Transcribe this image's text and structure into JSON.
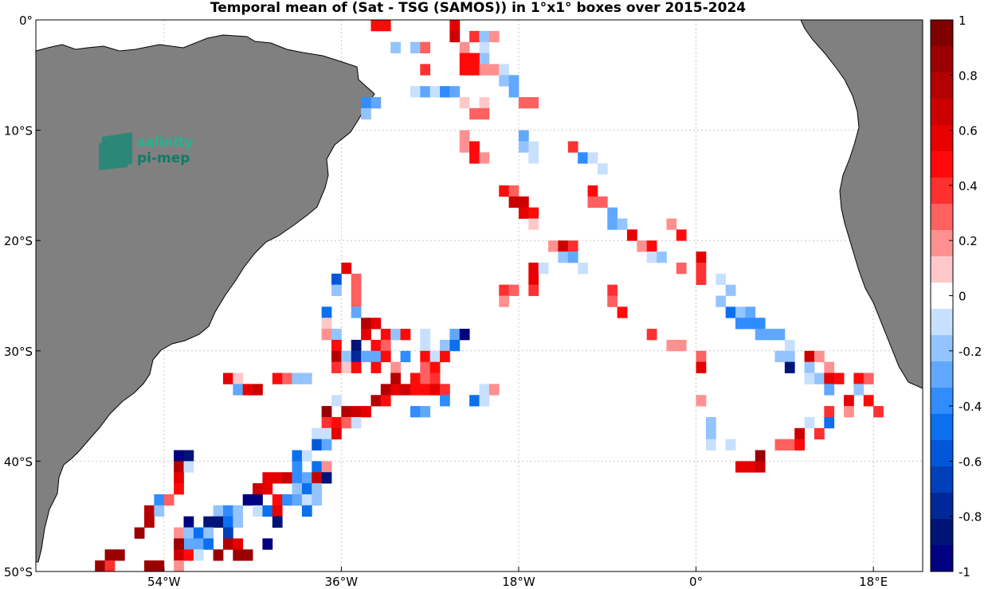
{
  "title": "Temporal mean of (Sat - TSG (SAMOS)) in 1°x1° boxes over 2015-2024",
  "logo": {
    "line1": "salinity",
    "line2": "pi-mep"
  },
  "chart_data": {
    "type": "heatmap",
    "map_extent": {
      "lon": [
        -67,
        23
      ],
      "lat": [
        -50,
        0
      ]
    },
    "x_ticks": [
      {
        "lon": -54,
        "label": "54°W"
      },
      {
        "lon": -36,
        "label": "36°W"
      },
      {
        "lon": -18,
        "label": "18°W"
      },
      {
        "lon": 0,
        "label": "0°"
      },
      {
        "lon": 18,
        "label": "18°E"
      }
    ],
    "y_ticks": [
      {
        "lat": 0,
        "label": "0°"
      },
      {
        "lat": -10,
        "label": "10°S"
      },
      {
        "lat": -20,
        "label": "20°S"
      },
      {
        "lat": -30,
        "label": "30°S"
      },
      {
        "lat": -40,
        "label": "40°S"
      },
      {
        "lat": -50,
        "label": "50°S"
      }
    ],
    "grid": true,
    "colorbar": {
      "range": [
        -1,
        1
      ],
      "ticks": [
        {
          "value": 1,
          "label": "1"
        },
        {
          "value": 0.8,
          "label": "0.8"
        },
        {
          "value": 0.6,
          "label": "0.6"
        },
        {
          "value": 0.4,
          "label": "0.4"
        },
        {
          "value": 0.2,
          "label": "0.2"
        },
        {
          "value": 0,
          "label": "0"
        },
        {
          "value": -0.2,
          "label": "-0.2"
        },
        {
          "value": -0.4,
          "label": "-0.4"
        },
        {
          "value": -0.6,
          "label": "-0.6"
        },
        {
          "value": -0.8,
          "label": "-0.8"
        },
        {
          "value": -1,
          "label": "-1"
        }
      ],
      "colors_top_to_bottom": [
        "#800000",
        "#9a0000",
        "#b40000",
        "#cc0000",
        "#e60000",
        "#ff0a0a",
        "#ff3030",
        "#ff6060",
        "#ff9090",
        "#ffc8c8",
        "#ffffff",
        "#c8e0ff",
        "#94c4ff",
        "#60a8ff",
        "#308cff",
        "#0a70f0",
        "#0058d8",
        "#0040b8",
        "#002898",
        "#001478",
        "#000080"
      ]
    },
    "cells": [
      [
        -33,
        0,
        0.5
      ],
      [
        -32,
        0,
        0.5
      ],
      [
        -25,
        0,
        0.6
      ],
      [
        -25,
        -1,
        0.7
      ],
      [
        -23,
        -1,
        0.4
      ],
      [
        -22,
        -1,
        -0.2
      ],
      [
        -21,
        -1,
        0.2
      ],
      [
        -31,
        -2,
        -0.2
      ],
      [
        -29,
        -2,
        -0.2
      ],
      [
        -28,
        -2,
        0.3
      ],
      [
        -24,
        -2,
        0.2
      ],
      [
        -22,
        -2,
        -0.1
      ],
      [
        -22,
        -3,
        -0.2
      ],
      [
        -24,
        -3,
        0.5
      ],
      [
        -23,
        -3,
        0.5
      ],
      [
        -28,
        -4,
        0.4
      ],
      [
        -24,
        -4,
        0.5
      ],
      [
        -23,
        -4,
        0.5
      ],
      [
        -22,
        -4,
        0.2
      ],
      [
        -21,
        -4,
        0.2
      ],
      [
        -20,
        -4,
        -0.1
      ],
      [
        -20,
        -5,
        -0.2
      ],
      [
        -19,
        -5,
        -0.3
      ],
      [
        -29,
        -6,
        -0.1
      ],
      [
        -28,
        -6,
        -0.3
      ],
      [
        -27,
        -6,
        -0.1
      ],
      [
        -26,
        -6,
        -0.4
      ],
      [
        -25,
        -6,
        -0.3
      ],
      [
        -19,
        -6,
        -0.3
      ],
      [
        -34,
        -7,
        -0.4
      ],
      [
        -33,
        -7,
        -0.3
      ],
      [
        -24,
        -7,
        0.1
      ],
      [
        -22,
        -7,
        0.1
      ],
      [
        -18,
        -7,
        0.3
      ],
      [
        -17,
        -7,
        0.3
      ],
      [
        -34,
        -8,
        -0.2
      ],
      [
        -23,
        -8,
        0.3
      ],
      [
        -22,
        -8,
        0.3
      ],
      [
        -18,
        -10,
        -0.3
      ],
      [
        -24,
        -10,
        0.2
      ],
      [
        -24,
        -11,
        0.2
      ],
      [
        -18,
        -11,
        -0.2
      ],
      [
        -17,
        -11,
        -0.1
      ],
      [
        -13,
        -11,
        0.4
      ],
      [
        -23,
        -11,
        0.5
      ],
      [
        -23,
        -12,
        0.5
      ],
      [
        -22,
        -12,
        0.2
      ],
      [
        -17,
        -12,
        -0.1
      ],
      [
        -12,
        -12,
        -0.4
      ],
      [
        -11,
        -12,
        -0.1
      ],
      [
        -10,
        -13,
        -0.1
      ],
      [
        -20,
        -15,
        0.5
      ],
      [
        -19,
        -15,
        0.3
      ],
      [
        -11,
        -15,
        0.5
      ],
      [
        -19,
        -16,
        0.7
      ],
      [
        -18,
        -16,
        0.7
      ],
      [
        -11,
        -16,
        0.3
      ],
      [
        -10,
        -16,
        0.3
      ],
      [
        -18,
        -17,
        0.6
      ],
      [
        -17,
        -17,
        0.5
      ],
      [
        -9,
        -17,
        -0.3
      ],
      [
        -17,
        -18,
        0.1
      ],
      [
        -9,
        -18,
        -0.3
      ],
      [
        -8,
        -18,
        -0.2
      ],
      [
        -3,
        -18,
        0.2
      ],
      [
        -7,
        -19,
        0.6
      ],
      [
        -2,
        -19,
        0.5
      ],
      [
        -15,
        -20,
        0.2
      ],
      [
        -14,
        -20,
        0.7
      ],
      [
        -13,
        -20,
        0.4
      ],
      [
        -6,
        -20,
        0.2
      ],
      [
        -5,
        -20,
        0.5
      ],
      [
        -14,
        -21,
        -0.2
      ],
      [
        -13,
        -21,
        -0.3
      ],
      [
        -5,
        -21,
        -0.1
      ],
      [
        -4,
        -21,
        -0.2
      ],
      [
        0,
        -21,
        0.6
      ],
      [
        -17,
        -22,
        0.6
      ],
      [
        -16,
        -22,
        -0.1
      ],
      [
        -12,
        -22,
        -0.1
      ],
      [
        -2,
        -22,
        0.3
      ],
      [
        0,
        -22,
        0.4
      ],
      [
        -17,
        -23,
        0.6
      ],
      [
        -36,
        -22,
        0.6
      ],
      [
        -37,
        -23,
        -0.6
      ],
      [
        -35,
        -23,
        0.3
      ],
      [
        0,
        -23,
        0.4
      ],
      [
        2,
        -23,
        -0.1
      ],
      [
        -20,
        -24,
        0.4
      ],
      [
        -19,
        -24,
        0.3
      ],
      [
        -17,
        -24,
        0.4
      ],
      [
        -9,
        -24,
        0.4
      ],
      [
        -37,
        -24,
        -0.2
      ],
      [
        -35,
        -24,
        0.3
      ],
      [
        3,
        -24,
        -0.2
      ],
      [
        -20,
        -25,
        0.2
      ],
      [
        -9,
        -25,
        0.3
      ],
      [
        -35,
        -25,
        0.3
      ],
      [
        2,
        -25,
        -0.2
      ],
      [
        3,
        -26,
        -0.5
      ],
      [
        4,
        -26,
        -0.2
      ],
      [
        5,
        -26,
        -0.3
      ],
      [
        -38,
        -26,
        -0.5
      ],
      [
        -35,
        -26,
        -0.3
      ],
      [
        -8,
        -26,
        0.5
      ],
      [
        -38,
        -27,
        0.1
      ],
      [
        4,
        -27,
        -0.4
      ],
      [
        5,
        -27,
        -0.4
      ],
      [
        6,
        -27,
        -0.4
      ],
      [
        -34,
        -27,
        0.8
      ],
      [
        -33,
        -27,
        0.6
      ],
      [
        -38,
        -28,
        0.2
      ],
      [
        -37,
        -28,
        -0.2
      ],
      [
        -34,
        -28,
        0.6
      ],
      [
        -32,
        -28,
        0.5
      ],
      [
        -31,
        -28,
        -0.2
      ],
      [
        -30,
        -28,
        0.5
      ],
      [
        -28,
        -28,
        -0.1
      ],
      [
        -25,
        -28,
        -0.3
      ],
      [
        -24,
        -28,
        -1
      ],
      [
        -5,
        -28,
        0.4
      ],
      [
        6,
        -28,
        -0.3
      ],
      [
        7,
        -28,
        -0.3
      ],
      [
        8,
        -28,
        -0.3
      ],
      [
        -37,
        -29,
        0.5
      ],
      [
        -35,
        -29,
        -0.9
      ],
      [
        -33,
        -29,
        0.5
      ],
      [
        -32,
        -29,
        0.3
      ],
      [
        -28,
        -29,
        -0.1
      ],
      [
        -26,
        -29,
        -0.2
      ],
      [
        -25,
        -29,
        -0.5
      ],
      [
        -3,
        -29,
        0.2
      ],
      [
        -2,
        -29,
        0.2
      ],
      [
        9,
        -29,
        -0.1
      ],
      [
        -37,
        -30,
        0.8
      ],
      [
        -36,
        -30,
        -0.2
      ],
      [
        -35,
        -30,
        -0.8
      ],
      [
        -34,
        -30,
        -0.3
      ],
      [
        -33,
        -30,
        -0.3
      ],
      [
        -32,
        -30,
        0.5
      ],
      [
        -30,
        -30,
        -0.4
      ],
      [
        -28,
        -30,
        0.5
      ],
      [
        -27,
        -30,
        -0.1
      ],
      [
        -26,
        -30,
        0.5
      ],
      [
        0,
        -30,
        0.3
      ],
      [
        8,
        -30,
        -0.2
      ],
      [
        9,
        -30,
        -0.2
      ],
      [
        11,
        -30,
        0.7
      ],
      [
        12,
        -30,
        0.2
      ],
      [
        -37,
        -31,
        0.4
      ],
      [
        -36,
        -31,
        0.1
      ],
      [
        -35,
        -31,
        0.5
      ],
      [
        -33,
        -31,
        0.5
      ],
      [
        -31,
        -31,
        0.2
      ],
      [
        -28,
        -31,
        0.3
      ],
      [
        -27,
        -31,
        0.5
      ],
      [
        0,
        -31,
        0.6
      ],
      [
        9,
        -31,
        -0.9
      ],
      [
        11,
        -31,
        -0.2
      ],
      [
        13,
        -31,
        0.2
      ],
      [
        -48,
        -32,
        0.6
      ],
      [
        -47,
        -32,
        0.1
      ],
      [
        -43,
        -32,
        0.5
      ],
      [
        -42,
        -32,
        0.3
      ],
      [
        -41,
        -32,
        -0.2
      ],
      [
        -40,
        -32,
        -0.2
      ],
      [
        -31,
        -32,
        0.8
      ],
      [
        -29,
        -32,
        0.5
      ],
      [
        -28,
        -32,
        0.3
      ],
      [
        -27,
        -32,
        0.4
      ],
      [
        11,
        -32,
        -0.1
      ],
      [
        12,
        -32,
        -0.2
      ],
      [
        13,
        -32,
        0.6
      ],
      [
        14,
        -32,
        0.5
      ],
      [
        16,
        -32,
        0.5
      ],
      [
        17,
        -32,
        0.3
      ],
      [
        -47,
        -33,
        -0.3
      ],
      [
        -46,
        -33,
        0.6
      ],
      [
        -45,
        -33,
        0.7
      ],
      [
        -32,
        -33,
        0.8
      ],
      [
        -31,
        -33,
        0.6
      ],
      [
        -30,
        -33,
        0.7
      ],
      [
        -29,
        -33,
        0.5
      ],
      [
        -28,
        -33,
        0.5
      ],
      [
        -27,
        -33,
        0.6
      ],
      [
        -26,
        -33,
        0.4
      ],
      [
        -22,
        -33,
        -0.1
      ],
      [
        -21,
        -33,
        0.2
      ],
      [
        13,
        -33,
        -0.3
      ],
      [
        16,
        -33,
        -0.2
      ],
      [
        -37,
        -34,
        -0.1
      ],
      [
        -33,
        -34,
        0.8
      ],
      [
        -32,
        -34,
        0.5
      ],
      [
        -26,
        -34,
        -0.4
      ],
      [
        -23,
        -34,
        -0.5
      ],
      [
        -22,
        -34,
        -0.1
      ],
      [
        0,
        -34,
        0.2
      ],
      [
        15,
        -34,
        0.6
      ],
      [
        17,
        -34,
        0.5
      ],
      [
        -38,
        -35,
        0.9
      ],
      [
        -36,
        -35,
        0.8
      ],
      [
        -35,
        -35,
        0.7
      ],
      [
        -34,
        -35,
        0.6
      ],
      [
        -29,
        -35,
        -0.4
      ],
      [
        -28,
        -35,
        -0.3
      ],
      [
        13,
        -35,
        0.4
      ],
      [
        15,
        -35,
        0.2
      ],
      [
        18,
        -35,
        0.4
      ],
      [
        -38,
        -36,
        0.4
      ],
      [
        -37,
        -36,
        0.5
      ],
      [
        -36,
        -36,
        0.3
      ],
      [
        -35,
        -36,
        -0.1
      ],
      [
        1,
        -36,
        -0.2
      ],
      [
        11,
        -36,
        -0.1
      ],
      [
        13,
        -36,
        -0.5
      ],
      [
        -39,
        -37,
        -0.1
      ],
      [
        -38,
        -37,
        -0.1
      ],
      [
        -37,
        -37,
        0.6
      ],
      [
        1,
        -37,
        -0.2
      ],
      [
        10,
        -37,
        0.7
      ],
      [
        12,
        -37,
        0.4
      ],
      [
        -39,
        -38,
        -0.6
      ],
      [
        -38,
        -38,
        -0.3
      ],
      [
        1,
        -38,
        -0.1
      ],
      [
        3,
        -38,
        -0.1
      ],
      [
        8,
        -38,
        0.3
      ],
      [
        9,
        -38,
        0.3
      ],
      [
        10,
        -38,
        0.5
      ],
      [
        -41,
        -39,
        -0.5
      ],
      [
        -40,
        -39,
        -0.1
      ],
      [
        6,
        -39,
        0.9
      ],
      [
        -41,
        -40,
        -0.4
      ],
      [
        -39,
        -40,
        -0.5
      ],
      [
        -38,
        -40,
        0.2
      ],
      [
        4,
        -40,
        0.6
      ],
      [
        5,
        -40,
        0.6
      ],
      [
        6,
        -40,
        0.7
      ],
      [
        -44,
        -41,
        0.6
      ],
      [
        -43,
        -41,
        0.6
      ],
      [
        -42,
        -41,
        0.7
      ],
      [
        -41,
        -41,
        -0.4
      ],
      [
        -40,
        -41,
        -0.3
      ],
      [
        -39,
        -41,
        0.7
      ],
      [
        -38,
        -41,
        -0.9
      ],
      [
        -45,
        -42,
        0.7
      ],
      [
        -44,
        -42,
        0.6
      ],
      [
        -41,
        -42,
        -0.2
      ],
      [
        -40,
        -42,
        -0.5
      ],
      [
        -39,
        -42,
        -0.2
      ],
      [
        -46,
        -43,
        -1
      ],
      [
        -45,
        -43,
        -1
      ],
      [
        -43,
        -43,
        0.5
      ],
      [
        -42,
        -43,
        -0.4
      ],
      [
        -41,
        -43,
        -0.3
      ],
      [
        -40,
        -43,
        -0.1
      ],
      [
        -39,
        -43,
        -0.2
      ],
      [
        -49,
        -44,
        -0.2
      ],
      [
        -48,
        -44,
        -0.4
      ],
      [
        -47,
        -44,
        -0.2
      ],
      [
        -45,
        -44,
        -0.1
      ],
      [
        -44,
        -44,
        -0.5
      ],
      [
        -43,
        -44,
        0.6
      ],
      [
        -40,
        -44,
        -0.5
      ],
      [
        -53,
        -39,
        -1
      ],
      [
        -52,
        -39,
        -0.9
      ],
      [
        -53,
        -40,
        0.8
      ],
      [
        -52,
        -40,
        -0.1
      ],
      [
        -53,
        -41,
        0.6
      ],
      [
        -53,
        -42,
        0.5
      ],
      [
        -55,
        -43,
        -0.4
      ],
      [
        -54,
        -43,
        0.3
      ],
      [
        -56,
        -44,
        0.8
      ],
      [
        -55,
        -44,
        -0.2
      ],
      [
        -56,
        -45,
        0.8
      ],
      [
        -52,
        -45,
        -1
      ],
      [
        -50,
        -45,
        -0.9
      ],
      [
        -49,
        -45,
        -0.9
      ],
      [
        -48,
        -45,
        -0.5
      ],
      [
        -47,
        -45,
        -0.2
      ],
      [
        -43,
        -45,
        -0.9
      ],
      [
        -57,
        -46,
        0.9
      ],
      [
        -53,
        -46,
        0.2
      ],
      [
        -52,
        -46,
        -0.2
      ],
      [
        -51,
        -46,
        -0.5
      ],
      [
        -50,
        -46,
        -0.2
      ],
      [
        -48,
        -46,
        -0.7
      ],
      [
        -52,
        -47,
        -0.3
      ],
      [
        -51,
        -47,
        -0.3
      ],
      [
        -50,
        -47,
        -0.5
      ],
      [
        -44,
        -47,
        -1
      ],
      [
        -53,
        -47,
        0.9
      ],
      [
        -48,
        -47,
        0.8
      ],
      [
        -47,
        -47,
        0.6
      ],
      [
        -53,
        -48,
        0.7
      ],
      [
        -52,
        -48,
        0.5
      ],
      [
        -51,
        -48,
        -0.1
      ],
      [
        -49,
        -48,
        0.9
      ],
      [
        -47,
        -48,
        0.9
      ],
      [
        -46,
        -48,
        0.9
      ],
      [
        -59,
        -48,
        0.9
      ],
      [
        -60,
        -48,
        0.9
      ],
      [
        -61,
        -49,
        0.9
      ],
      [
        -60,
        -49,
        0.4
      ],
      [
        -56,
        -49,
        0.9
      ],
      [
        -55,
        -49,
        0.9
      ],
      [
        -53,
        -49,
        0.2
      ]
    ]
  }
}
